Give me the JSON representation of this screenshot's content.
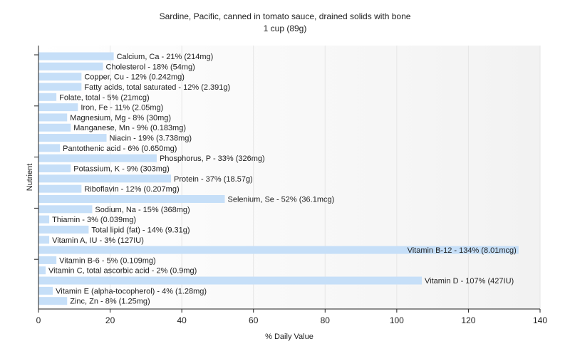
{
  "chart_data": {
    "type": "bar",
    "orientation": "horizontal",
    "title": "Sardine, Pacific, canned in tomato sauce, drained solids with bone",
    "subtitle": "1 cup (89g)",
    "xlabel": "% Daily Value",
    "ylabel": "Nutrient",
    "xlim": [
      0,
      140
    ],
    "xticks": [
      0,
      20,
      40,
      60,
      80,
      100,
      120,
      140
    ],
    "grid": true,
    "legend": "none",
    "bar_color": "#c6dff8",
    "bars": [
      {
        "label": "Calcium, Ca - 21% (214mg)",
        "value": 21
      },
      {
        "label": "Cholesterol - 18% (54mg)",
        "value": 18
      },
      {
        "label": "Copper, Cu - 12% (0.242mg)",
        "value": 12
      },
      {
        "label": "Fatty acids, total saturated - 12% (2.391g)",
        "value": 12
      },
      {
        "label": "Folate, total - 5% (21mcg)",
        "value": 5
      },
      {
        "label": "Iron, Fe - 11% (2.05mg)",
        "value": 11
      },
      {
        "label": "Magnesium, Mg - 8% (30mg)",
        "value": 8
      },
      {
        "label": "Manganese, Mn - 9% (0.183mg)",
        "value": 9
      },
      {
        "label": "Niacin - 19% (3.738mg)",
        "value": 19
      },
      {
        "label": "Pantothenic acid - 6% (0.650mg)",
        "value": 6
      },
      {
        "label": "Phosphorus, P - 33% (326mg)",
        "value": 33
      },
      {
        "label": "Potassium, K - 9% (303mg)",
        "value": 9
      },
      {
        "label": "Protein - 37% (18.57g)",
        "value": 37
      },
      {
        "label": "Riboflavin - 12% (0.207mg)",
        "value": 12
      },
      {
        "label": "Selenium, Se - 52% (36.1mcg)",
        "value": 52
      },
      {
        "label": "Sodium, Na - 15% (368mg)",
        "value": 15
      },
      {
        "label": "Thiamin - 3% (0.039mg)",
        "value": 3
      },
      {
        "label": "Total lipid (fat) - 14% (9.31g)",
        "value": 14
      },
      {
        "label": "Vitamin A, IU - 3% (127IU)",
        "value": 3
      },
      {
        "label": "Vitamin B-12 - 134% (8.01mcg)",
        "value": 134
      },
      {
        "label": "Vitamin B-6 - 5% (0.109mg)",
        "value": 5
      },
      {
        "label": "Vitamin C, total ascorbic acid - 2% (0.9mg)",
        "value": 2
      },
      {
        "label": "Vitamin D - 107% (427IU)",
        "value": 107
      },
      {
        "label": "Vitamin E (alpha-tocopherol) - 4% (1.28mg)",
        "value": 4
      },
      {
        "label": "Zinc, Zn - 8% (1.25mg)",
        "value": 8
      }
    ]
  }
}
